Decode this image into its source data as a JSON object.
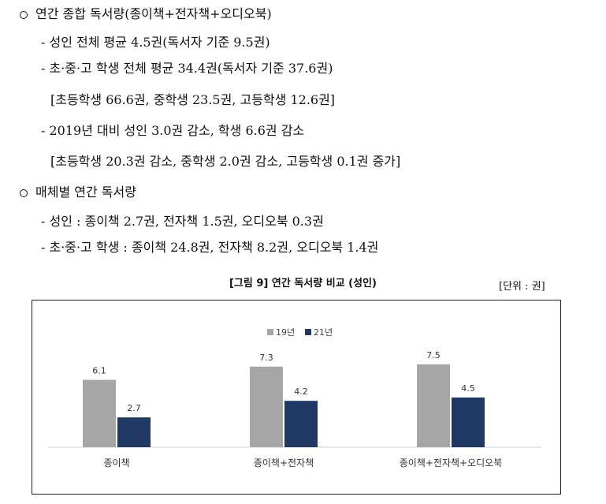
{
  "sections": [
    {
      "heading": "연간 종합 독서량(종이책+전자책+오디오북)",
      "items": [
        "- 성인 전체 평균 4.5권(독서자 기준 9.5권)",
        "- 초·중·고 학생 전체 평균 34.4권(독서자 기준 37.6권)",
        "[초등학생 66.6권, 중학생 23.5권, 고등학생 12.6권]",
        "- 2019년 대비 성인 3.0권 감소, 학생 6.6권 감소",
        "[초등학생 20.3권 감소, 중학생 2.0권 감소, 고등학생 0.1권 증가]"
      ]
    },
    {
      "heading": "매체별 연간 독서량",
      "items": [
        "- 성인 : 종이책 2.7권, 전자책 1.5권, 오디오북 0.3권",
        "- 초·중·고 학생 : 종이책 24.8권, 전자책 8.2권, 오디오북 1.4권"
      ]
    }
  ],
  "figure": {
    "title": "[그림 9] 연간 독서량 비교 (성인)",
    "unit": "[단위 : 권]"
  },
  "chart_data": {
    "type": "bar",
    "categories": [
      "종이책",
      "종이책+전자책",
      "종이책+전자책+오디오북"
    ],
    "series": [
      {
        "name": "19년",
        "values": [
          6.1,
          7.3,
          7.5
        ],
        "color": "#a6a6a6"
      },
      {
        "name": "21년",
        "values": [
          2.7,
          4.2,
          4.5
        ],
        "color": "#1f3864"
      }
    ],
    "ylim": [
      0,
      9
    ],
    "legend": "top-center",
    "grid": false
  }
}
